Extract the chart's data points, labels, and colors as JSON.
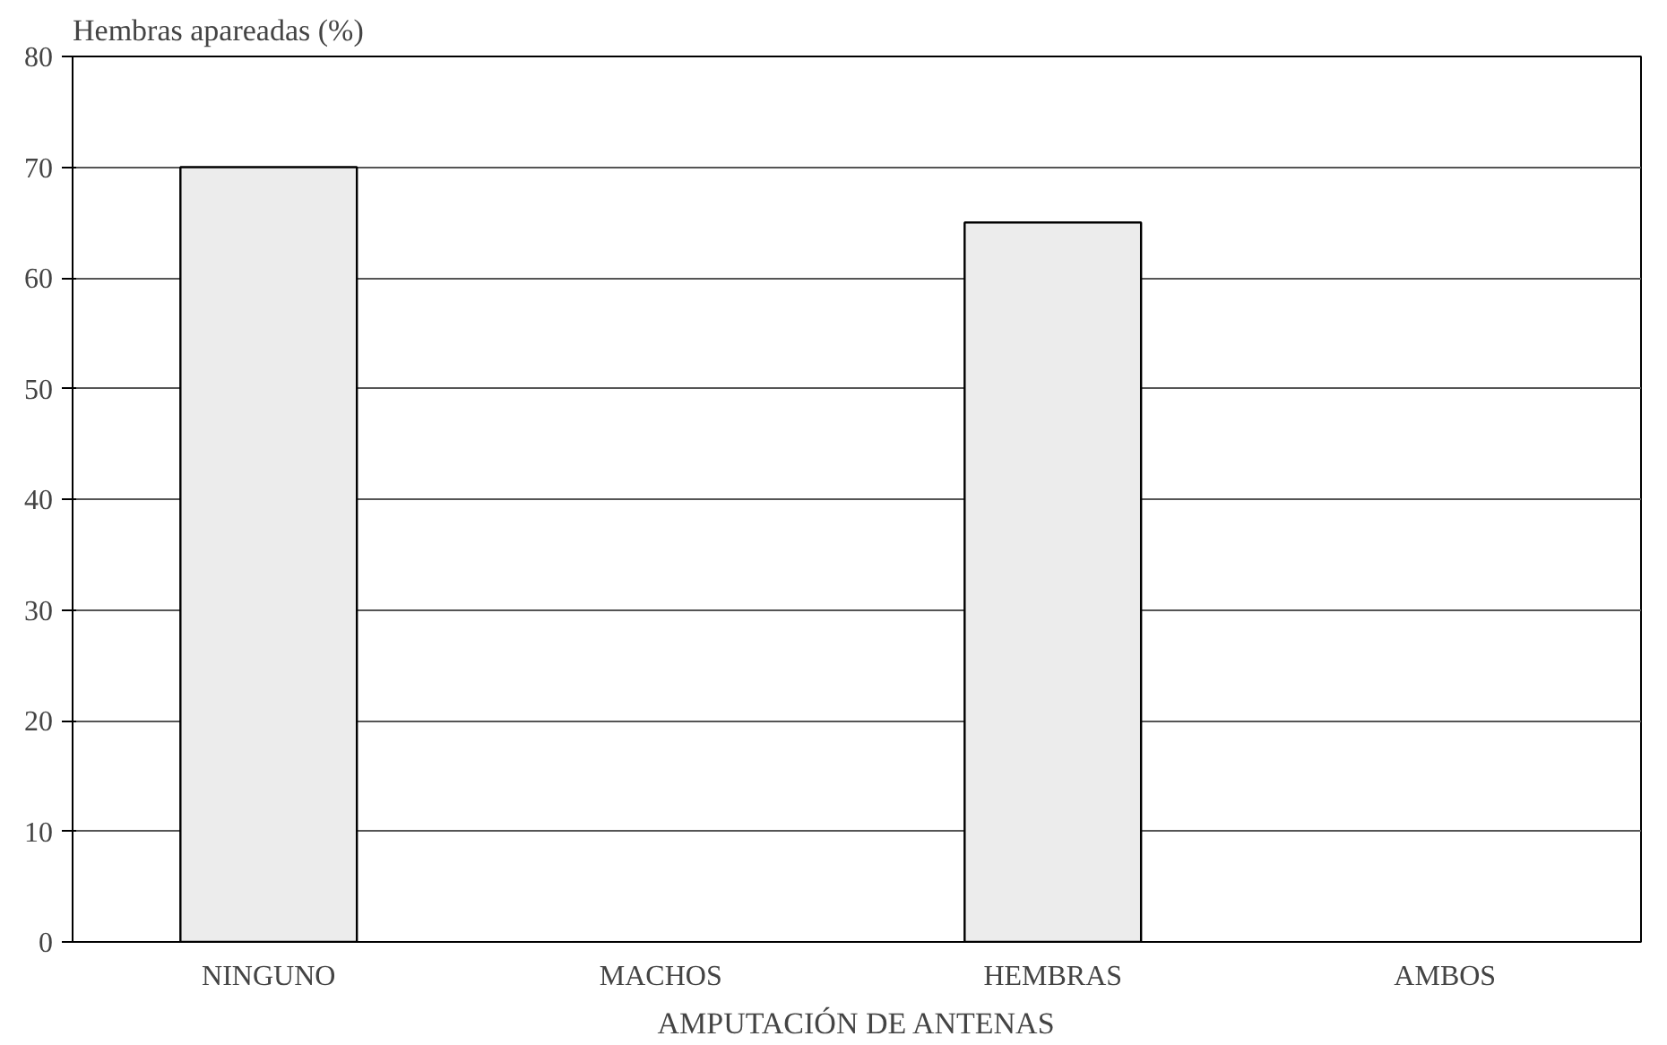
{
  "chart_data": {
    "type": "bar",
    "ylabel": "Hembras apareadas (%)",
    "xlabel": "AMPUTACIÓN DE ANTENAS",
    "categories": [
      "NINGUNO",
      "MACHOS",
      "HEMBRAS",
      "AMBOS"
    ],
    "values": [
      70,
      0,
      65,
      0
    ],
    "color": "#ececec",
    "ylim": [
      0,
      80
    ],
    "yticks": [
      0,
      10,
      20,
      30,
      40,
      50,
      60,
      70,
      80
    ],
    "grid": "y"
  }
}
